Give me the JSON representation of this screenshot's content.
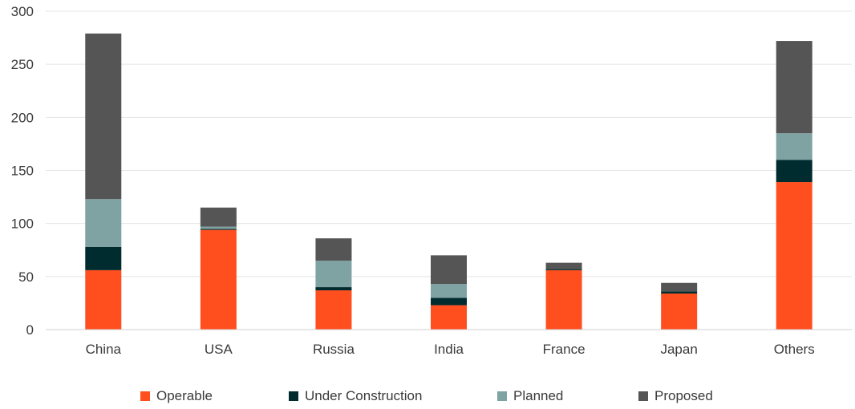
{
  "chart_data": {
    "type": "bar",
    "stacked": true,
    "categories": [
      "China",
      "USA",
      "Russia",
      "India",
      "France",
      "Japan",
      "Others"
    ],
    "series": [
      {
        "name": "Operable",
        "color": "#ff4f1f",
        "values": [
          56,
          94,
          37,
          23,
          56,
          34,
          139
        ]
      },
      {
        "name": "Under Construction",
        "color": "#002b2f",
        "values": [
          22,
          1,
          3,
          7,
          1,
          2,
          21
        ]
      },
      {
        "name": "Planned",
        "color": "#7fa2a3",
        "values": [
          45,
          2,
          25,
          13,
          0,
          0,
          25
        ]
      },
      {
        "name": "Proposed",
        "color": "#555555",
        "values": [
          156,
          18,
          21,
          27,
          6,
          8,
          87
        ]
      }
    ],
    "ylim": [
      0,
      300
    ],
    "yticks": [
      0,
      50,
      100,
      150,
      200,
      250,
      300
    ],
    "grid": true,
    "legend_position": "bottom"
  }
}
